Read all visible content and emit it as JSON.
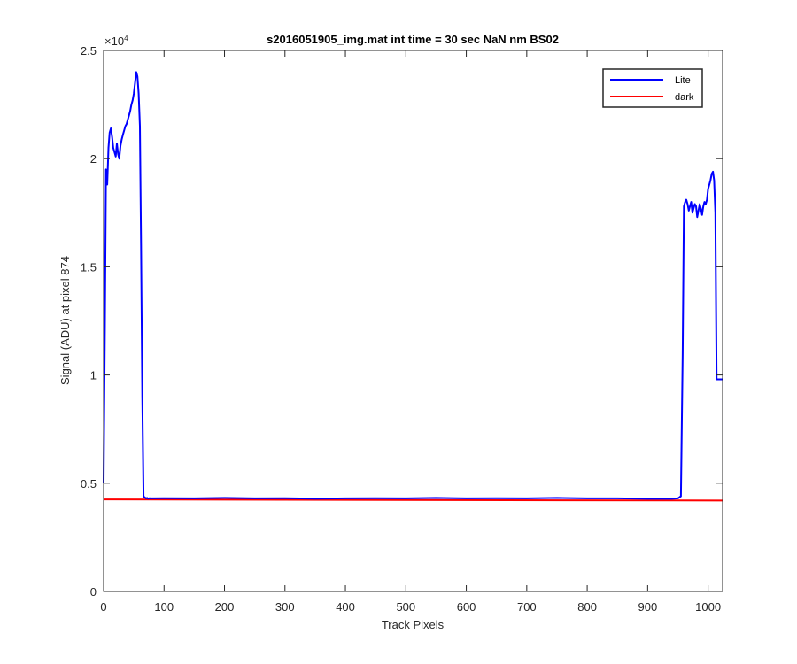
{
  "chart_data": {
    "type": "line",
    "title": "s2016051905_img.mat int time = 30 sec  NaN nm BS02",
    "xlabel": "Track Pixels",
    "ylabel": "Signal (ADU) at pixel 874",
    "exponent_label": "×10",
    "exponent_power": "4",
    "xlim": [
      0,
      1024
    ],
    "ylim": [
      0,
      25000
    ],
    "xticks": [
      0,
      100,
      200,
      300,
      400,
      500,
      600,
      700,
      800,
      900,
      1000
    ],
    "xtick_labels": [
      "0",
      "100",
      "200",
      "300",
      "400",
      "500",
      "600",
      "700",
      "800",
      "900",
      "1000"
    ],
    "yticks": [
      0,
      5000,
      10000,
      15000,
      20000,
      25000
    ],
    "ytick_labels": [
      "0",
      "0.5",
      "1",
      "1.5",
      "2",
      "2.5"
    ],
    "grid": false,
    "legend_position": "top-right",
    "series": [
      {
        "name": "Lite",
        "color": "#0000ff",
        "x": [
          0,
          2,
          4,
          6,
          8,
          10,
          12,
          14,
          16,
          18,
          20,
          22,
          24,
          26,
          28,
          30,
          32,
          34,
          36,
          38,
          40,
          42,
          44,
          46,
          48,
          50,
          52,
          54,
          56,
          58,
          60,
          62,
          64,
          66,
          68,
          70,
          72,
          74,
          76,
          78,
          100,
          150,
          200,
          250,
          300,
          350,
          400,
          450,
          500,
          550,
          600,
          650,
          700,
          750,
          800,
          850,
          900,
          940,
          950,
          955,
          958,
          960,
          962,
          964,
          966,
          968,
          970,
          972,
          974,
          976,
          978,
          980,
          982,
          984,
          986,
          988,
          990,
          992,
          994,
          996,
          998,
          1000,
          1002,
          1004,
          1006,
          1008,
          1010,
          1012,
          1014,
          1016,
          1018,
          1020,
          1022,
          1024
        ],
        "y": [
          5000,
          12000,
          19500,
          18800,
          20500,
          21200,
          21400,
          21000,
          20500,
          20300,
          20100,
          20700,
          20200,
          20000,
          20600,
          20900,
          21100,
          21300,
          21500,
          21600,
          21800,
          22000,
          22200,
          22500,
          22700,
          23000,
          23500,
          24000,
          23800,
          23000,
          21500,
          16000,
          9000,
          4400,
          4350,
          4300,
          4320,
          4290,
          4310,
          4300,
          4310,
          4300,
          4320,
          4300,
          4310,
          4290,
          4300,
          4310,
          4300,
          4320,
          4300,
          4310,
          4300,
          4320,
          4300,
          4300,
          4280,
          4280,
          4300,
          4400,
          11000,
          17800,
          18000,
          18100,
          17900,
          17600,
          17800,
          18000,
          17500,
          17700,
          17900,
          17800,
          17300,
          17600,
          17900,
          17700,
          17400,
          17800,
          18000,
          17900,
          18100,
          18600,
          18800,
          19000,
          19300,
          19400,
          19000,
          17500,
          9800,
          9800,
          9800,
          9800,
          9800,
          9800
        ]
      },
      {
        "name": "dark",
        "color": "#ff0000",
        "x": [
          0,
          1024
        ],
        "y": [
          4250,
          4200
        ]
      }
    ]
  }
}
